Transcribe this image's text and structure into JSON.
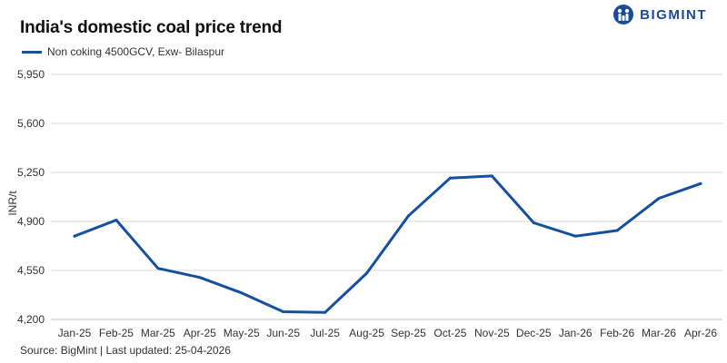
{
  "header": {
    "title": "India's domestic coal price trend",
    "logo_text": "BIGMINT"
  },
  "footer": {
    "source": "Source: BigMint | Last updated: 25-04-2026"
  },
  "colors": {
    "series": "#1550a0",
    "grid": "#d9d9d9",
    "brand": "#1a4a9a"
  },
  "chart_data": {
    "type": "line",
    "title": "India's domestic coal price trend",
    "ylabel": "INR/t",
    "xlabel": "",
    "ylim": [
      4200,
      5950
    ],
    "yticks": [
      4200,
      4550,
      4900,
      5250,
      5600,
      5950
    ],
    "ytick_labels": [
      "4,200",
      "4,550",
      "4,900",
      "5,250",
      "5,600",
      "5,950"
    ],
    "grid": "horizontal",
    "legend_position": "top-left",
    "categories": [
      "Jan-25",
      "Feb-25",
      "Mar-25",
      "Apr-25",
      "May-25",
      "Jun-25",
      "Jul-25",
      "Aug-25",
      "Sep-25",
      "Oct-25",
      "Nov-25",
      "Dec-25",
      "Jan-26",
      "Feb-26",
      "Mar-26",
      "Apr-26"
    ],
    "series": [
      {
        "name": "Non coking 4500GCV, Exw- Bilaspur",
        "values": [
          4795,
          4910,
          4565,
          4500,
          4390,
          4255,
          4250,
          4530,
          4940,
          5210,
          5225,
          4890,
          4795,
          4835,
          5065,
          5170
        ]
      }
    ]
  }
}
